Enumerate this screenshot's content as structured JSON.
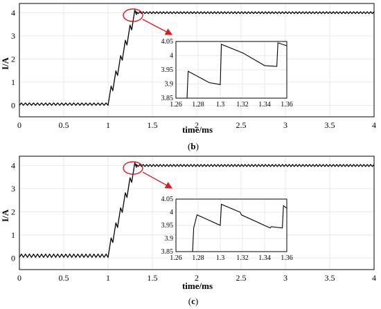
{
  "chart_data": [
    {
      "type": "line",
      "caption_label": "b",
      "xlabel": "time/ms",
      "ylabel": "I/A",
      "xlim": [
        0,
        4
      ],
      "ylim": [
        -0.5,
        4.4
      ],
      "xticks": [
        "0",
        "0.5",
        "1",
        "1.5",
        "2",
        "2.5",
        "3",
        "3.5",
        "4"
      ],
      "yticks": [
        "0",
        "1",
        "2",
        "3",
        "4"
      ],
      "grid": true,
      "series": [
        {
          "steady_initial_mean": 0.05,
          "initial_ripple_amplitude": 0.05,
          "step_time": 1.0,
          "rise_end_time": 1.32,
          "final_mean": 4.0,
          "final_ripple_amplitude": 0.04
        }
      ],
      "inset": {
        "xlim": [
          1.26,
          1.36
        ],
        "ylim": [
          3.85,
          4.05
        ],
        "xticks": [
          "1.26",
          "1.28",
          "1.3",
          "1.32",
          "1.34",
          "1.36"
        ],
        "yticks": [
          "3.85",
          "3.9",
          "3.95",
          "4",
          "4.05"
        ],
        "x": [
          1.27,
          1.271,
          1.29,
          1.3,
          1.301,
          1.32,
          1.321,
          1.34,
          1.351,
          1.352,
          1.36
        ],
        "y": [
          3.85,
          3.945,
          3.905,
          3.898,
          4.04,
          4.01,
          4.008,
          3.965,
          3.962,
          4.045,
          4.035
        ]
      }
    },
    {
      "type": "line",
      "caption_label": "c",
      "xlabel": "time/ms",
      "ylabel": "I/A",
      "xlim": [
        0,
        4
      ],
      "ylim": [
        -0.5,
        4.4
      ],
      "xticks": [
        "0",
        "0.5",
        "1",
        "1.5",
        "2",
        "2.5",
        "3",
        "3.5",
        "4"
      ],
      "yticks": [
        "0",
        "1",
        "2",
        "3",
        "4"
      ],
      "grid": true,
      "series": [
        {
          "steady_initial_mean": 0.1,
          "initial_ripple_amplitude": 0.07,
          "step_time": 1.0,
          "rise_end_time": 1.32,
          "final_mean": 4.0,
          "final_ripple_amplitude": 0.045
        }
      ],
      "inset": {
        "xlim": [
          1.26,
          1.36
        ],
        "ylim": [
          3.85,
          4.05
        ],
        "xticks": [
          "1.26",
          "1.28",
          "1.3",
          "1.32",
          "1.34",
          "1.36"
        ],
        "yticks": [
          "3.85",
          "3.9",
          "3.95",
          "4",
          "4.05"
        ],
        "x": [
          1.275,
          1.276,
          1.279,
          1.3,
          1.301,
          1.318,
          1.319,
          1.345,
          1.346,
          1.356,
          1.357,
          1.36
        ],
        "y": [
          3.85,
          3.94,
          3.99,
          3.95,
          4.03,
          4.0,
          3.99,
          3.94,
          3.945,
          3.94,
          4.025,
          4.015
        ]
      }
    }
  ]
}
